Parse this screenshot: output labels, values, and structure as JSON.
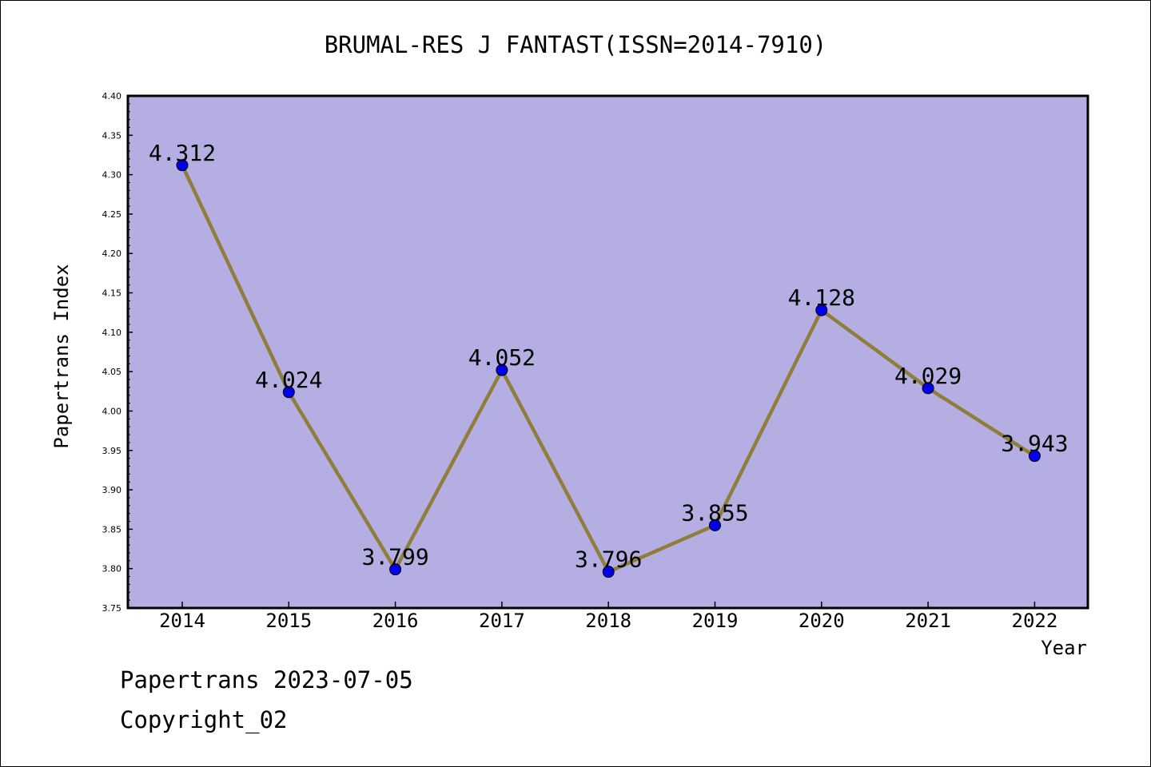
{
  "chart_data": {
    "type": "line",
    "title": "BRUMAL-RES J FANTAST(ISSN=2014-7910)",
    "xlabel": "Year",
    "ylabel": "Papertrans Index",
    "categories": [
      "2014",
      "2015",
      "2016",
      "2017",
      "2018",
      "2019",
      "2020",
      "2021",
      "2022"
    ],
    "series": [
      {
        "values": [
          4.312,
          4.024,
          3.799,
          4.052,
          3.796,
          3.855,
          4.128,
          4.029,
          3.943
        ],
        "labels": [
          "4.312",
          "4.024",
          "3.799",
          "4.052",
          "3.796",
          "3.855",
          "4.128",
          "4.029",
          "3.943"
        ]
      }
    ],
    "ylim": [
      3.75,
      4.4
    ],
    "yticks": [
      "3.75",
      "3.80",
      "3.85",
      "3.90",
      "3.95",
      "4.00",
      "4.05",
      "4.10",
      "4.15",
      "4.20",
      "4.25",
      "4.30",
      "4.35",
      "4.40"
    ],
    "grid": false,
    "colors": {
      "plot_background": "#b5aee2",
      "line": "#8f7d3c",
      "marker": "#0000ee"
    }
  },
  "footer": {
    "line1": "Papertrans 2023-07-05",
    "line2": "Copyright_02"
  }
}
